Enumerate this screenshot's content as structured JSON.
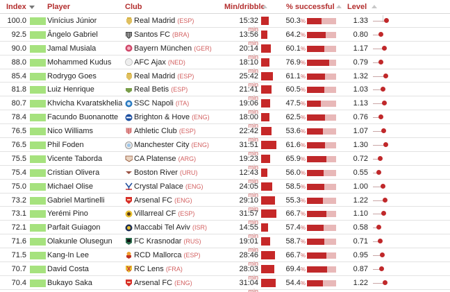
{
  "header": {
    "index": "Index",
    "player": "Player",
    "club": "Club",
    "min_dribble": "Min/dribble",
    "pct_successful": "% successful",
    "level": "Level"
  },
  "units": {
    "min": "min",
    "pct": "%"
  },
  "colors": {
    "header_text": "#b32e2e",
    "index_bar": "#a6e27e",
    "accent_red": "#c0282a",
    "pct_track": "#e8b8b8",
    "country_code": "#d36060"
  },
  "rows": [
    {
      "index": "100.0",
      "player": "Vinícius Júnior",
      "club": "Real Madrid",
      "country": "(ESP)",
      "club_icon": "real-madrid-crest-icon",
      "min_dribble": "15:32",
      "pct": "50.3",
      "level": "1.33"
    },
    {
      "index": "92.5",
      "player": "Ângelo Gabriel",
      "club": "Santos FC",
      "country": "(BRA)",
      "club_icon": "santos-crest-icon",
      "min_dribble": "13:56",
      "pct": "64.2",
      "level": "0.80"
    },
    {
      "index": "90.0",
      "player": "Jamal Musiala",
      "club": "Bayern München",
      "country": "(GER)",
      "club_icon": "bayern-crest-icon",
      "min_dribble": "20:14",
      "pct": "60.1",
      "level": "1.17"
    },
    {
      "index": "88.0",
      "player": "Mohammed Kudus",
      "club": "AFC Ajax",
      "country": "(NED)",
      "club_icon": "ajax-crest-icon",
      "min_dribble": "18:10",
      "pct": "76.9",
      "level": "0.79"
    },
    {
      "index": "85.4",
      "player": "Rodrygo Goes",
      "club": "Real Madrid",
      "country": "(ESP)",
      "club_icon": "real-madrid-crest-icon",
      "min_dribble": "25:42",
      "pct": "61.1",
      "level": "1.32"
    },
    {
      "index": "81.8",
      "player": "Luiz Henrique",
      "club": "Real Betis",
      "country": "(ESP)",
      "club_icon": "real-betis-crest-icon",
      "min_dribble": "21:41",
      "pct": "60.5",
      "level": "1.03"
    },
    {
      "index": "80.7",
      "player": "Khvicha Kvaratskhelia",
      "club": "SSC Napoli",
      "country": "(ITA)",
      "club_icon": "napoli-crest-icon",
      "min_dribble": "19:06",
      "pct": "47.5",
      "level": "1.13"
    },
    {
      "index": "78.4",
      "player": "Facundo Buonanotte",
      "club": "Brighton & Hove",
      "country": "(ENG)",
      "club_icon": "brighton-crest-icon",
      "min_dribble": "18:00",
      "pct": "62.5",
      "level": "0.76"
    },
    {
      "index": "76.5",
      "player": "Nico Williams",
      "club": "Athletic Club",
      "country": "(ESP)",
      "club_icon": "athletic-club-crest-icon",
      "min_dribble": "22:42",
      "pct": "53.6",
      "level": "1.07"
    },
    {
      "index": "76.5",
      "player": "Phil Foden",
      "club": "Manchester City",
      "country": "(ENG)",
      "club_icon": "man-city-crest-icon",
      "min_dribble": "31:51",
      "pct": "61.6",
      "level": "1.30"
    },
    {
      "index": "75.5",
      "player": "Vicente Taborda",
      "club": "CA Platense",
      "country": "(ARG)",
      "club_icon": "platense-crest-icon",
      "min_dribble": "19:23",
      "pct": "65.9",
      "level": "0.72"
    },
    {
      "index": "75.4",
      "player": "Cristian Olivera",
      "club": "Boston River",
      "country": "(URU)",
      "club_icon": "boston-river-crest-icon",
      "min_dribble": "12:43",
      "pct": "56.0",
      "level": "0.55"
    },
    {
      "index": "75.0",
      "player": "Michael Olise",
      "club": "Crystal Palace",
      "country": "(ENG)",
      "club_icon": "crystal-palace-crest-icon",
      "min_dribble": "24:05",
      "pct": "58.5",
      "level": "1.00"
    },
    {
      "index": "73.2",
      "player": "Gabriel Martinelli",
      "club": "Arsenal FC",
      "country": "(ENG)",
      "club_icon": "arsenal-crest-icon",
      "min_dribble": "29:10",
      "pct": "55.3",
      "level": "1.22"
    },
    {
      "index": "73.1",
      "player": "Yerémi Pino",
      "club": "Villarreal CF",
      "country": "(ESP)",
      "club_icon": "villarreal-crest-icon",
      "min_dribble": "31:57",
      "pct": "66.7",
      "level": "1.10"
    },
    {
      "index": "72.1",
      "player": "Parfait Guiagon",
      "club": "Maccabi Tel Aviv",
      "country": "(ISR)",
      "club_icon": "maccabi-crest-icon",
      "min_dribble": "14:55",
      "pct": "57.4",
      "level": "0.58"
    },
    {
      "index": "71.6",
      "player": "Olakunle Olusegun",
      "club": "FC Krasnodar",
      "country": "(RUS)",
      "club_icon": "krasnodar-crest-icon",
      "min_dribble": "19:01",
      "pct": "58.7",
      "level": "0.71"
    },
    {
      "index": "71.5",
      "player": "Kang-In Lee",
      "club": "RCD Mallorca",
      "country": "(ESP)",
      "club_icon": "mallorca-crest-icon",
      "min_dribble": "28:46",
      "pct": "66.7",
      "level": "0.95"
    },
    {
      "index": "70.7",
      "player": "David Costa",
      "club": "RC Lens",
      "country": "(FRA)",
      "club_icon": "lens-crest-icon",
      "min_dribble": "28:03",
      "pct": "69.4",
      "level": "0.87"
    },
    {
      "index": "70.4",
      "player": "Bukayo Saka",
      "club": "Arsenal FC",
      "country": "(ENG)",
      "club_icon": "arsenal-crest-icon",
      "min_dribble": "31:04",
      "pct": "54.4",
      "level": "1.22"
    }
  ]
}
